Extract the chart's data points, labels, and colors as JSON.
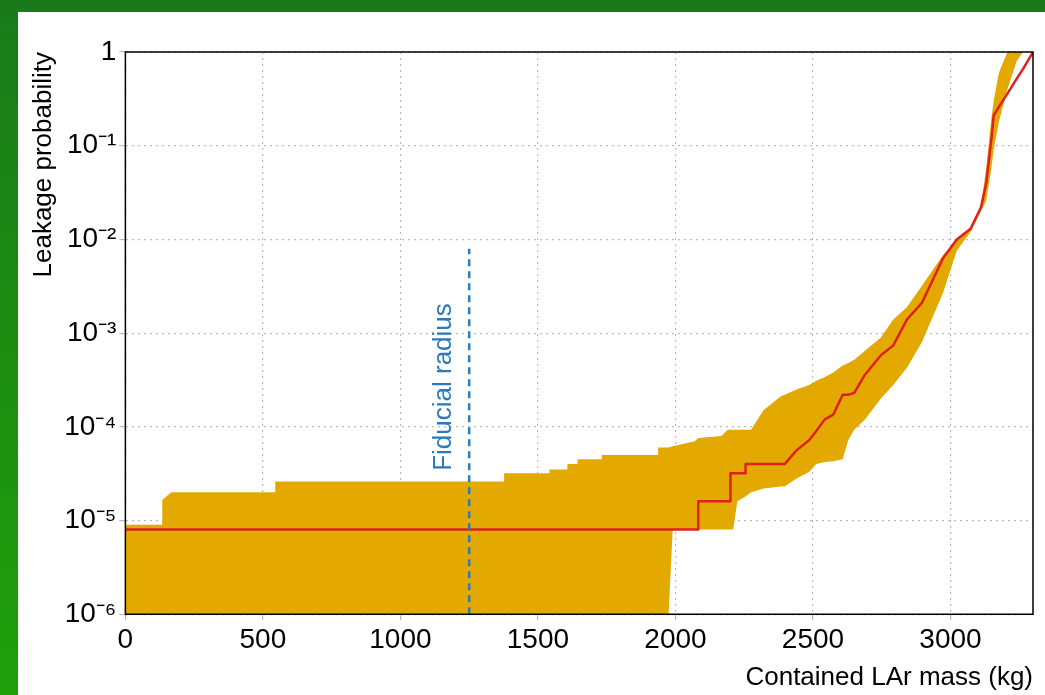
{
  "chart_data": {
    "type": "line",
    "xlabel": "Contained LAr mass (kg)",
    "ylabel": "Leakage probability",
    "x": [
      0,
      134,
      134,
      167,
      545,
      545,
      1377,
      1377,
      1542,
      1542,
      1607,
      1607,
      1644,
      1644,
      1732,
      1732,
      1937,
      1937,
      1975,
      1990,
      2070,
      2083,
      2083,
      2167,
      2190,
      2200,
      2200,
      2210,
      2225,
      2255,
      2255,
      2275,
      2320,
      2382,
      2397,
      2440,
      2486,
      2512,
      2543,
      2574,
      2608,
      2628,
      2650,
      2689,
      2747,
      2792,
      2842,
      2896,
      2973,
      3023,
      3073,
      3111,
      3130,
      3149,
      3157,
      3176,
      3207,
      3241,
      3264,
      3300
    ],
    "series": [
      {
        "color": "#e02020",
        "values": [
          8e-06,
          8e-06,
          8e-06,
          8e-06,
          8e-06,
          8e-06,
          8e-06,
          8e-06,
          8e-06,
          8e-06,
          8e-06,
          8e-06,
          8e-06,
          8e-06,
          8e-06,
          8e-06,
          8e-06,
          8e-06,
          8e-06,
          8e-06,
          8e-06,
          8e-06,
          1.6e-05,
          1.6e-05,
          1.6e-05,
          1.6e-05,
          3.2e-05,
          3.2e-05,
          3.2e-05,
          3.2e-05,
          4e-05,
          4e-05,
          4e-05,
          4e-05,
          4e-05,
          5.6e-05,
          7.2e-05,
          9e-05,
          0.00012,
          0.000135,
          0.00022,
          0.00022,
          0.00023,
          0.00036,
          0.00058,
          0.00074,
          0.0014,
          0.0021,
          0.0063,
          0.01,
          0.013,
          0.022,
          0.04,
          0.12,
          0.21,
          0.26,
          0.36,
          0.52,
          0.66,
          1
        ],
        "lower": [
          1e-06,
          1e-06,
          1e-06,
          1e-06,
          1e-06,
          1e-06,
          1e-06,
          1e-06,
          1e-06,
          1e-06,
          1e-06,
          1e-06,
          1e-06,
          1e-06,
          1e-06,
          1e-06,
          1e-06,
          1e-06,
          1e-06,
          8e-06,
          8e-06,
          8e-06,
          8e-06,
          8e-06,
          8e-06,
          8e-06,
          8e-06,
          8e-06,
          1.6e-05,
          1.8e-05,
          1.8e-05,
          2e-05,
          2.2e-05,
          2.3e-05,
          2.3e-05,
          2.8e-05,
          3.3e-05,
          4e-05,
          4.2e-05,
          4.3e-05,
          4.5e-05,
          7.2e-05,
          9.3e-05,
          0.00012,
          0.0002,
          0.00028,
          0.00043,
          0.0008,
          0.0027,
          0.0076,
          0.012,
          0.02,
          0.026,
          0.058,
          0.09,
          0.18,
          0.4,
          0.8,
          1,
          1
        ],
        "upper": [
          9e-06,
          9e-06,
          1.65e-05,
          2e-05,
          2e-05,
          2.6e-05,
          2.6e-05,
          3.2e-05,
          3.2e-05,
          3.5e-05,
          3.5e-05,
          4e-05,
          4e-05,
          4.5e-05,
          4.5e-05,
          5e-05,
          5e-05,
          6e-05,
          6e-05,
          6.2e-05,
          7e-05,
          7.6e-05,
          7.6e-05,
          8e-05,
          9.3e-05,
          9.3e-05,
          9.3e-05,
          9.3e-05,
          9.3e-05,
          9.3e-05,
          9.3e-05,
          9.3e-05,
          0.00015,
          0.00021,
          0.00022,
          0.00025,
          0.00028,
          0.00031,
          0.00034,
          0.00038,
          0.00045,
          0.00048,
          0.00052,
          0.00065,
          0.0009,
          0.0014,
          0.0019,
          0.0032,
          0.0068,
          0.01,
          0.0135,
          0.023,
          0.058,
          0.2,
          0.3,
          0.6,
          1,
          1,
          1,
          1
        ]
      }
    ],
    "log": true,
    "xlim": [
      0,
      3300
    ],
    "xticks": [
      0,
      500,
      1000,
      1500,
      2000,
      2500,
      3000
    ],
    "ylim": [
      1e-06,
      1
    ],
    "yticks": [
      {
        "value": 1e-06,
        "label": "10⁻⁶"
      },
      {
        "value": 1e-05,
        "label": "10⁻⁵"
      },
      {
        "value": 0.0001,
        "label": "10⁻⁴"
      },
      {
        "value": 0.001,
        "label": "10⁻³"
      },
      {
        "value": 0.01,
        "label": "10⁻²"
      },
      {
        "value": 0.1,
        "label": "10⁻¹"
      },
      1
    ],
    "grid": true,
    "legend": false,
    "marker": "none",
    "line_style": "solid",
    "ref_lines": [
      {
        "axis": "x",
        "value": 1250,
        "label": "Fiducial radius",
        "color": "#2b7bba",
        "line_style": "dashed"
      }
    ]
  }
}
